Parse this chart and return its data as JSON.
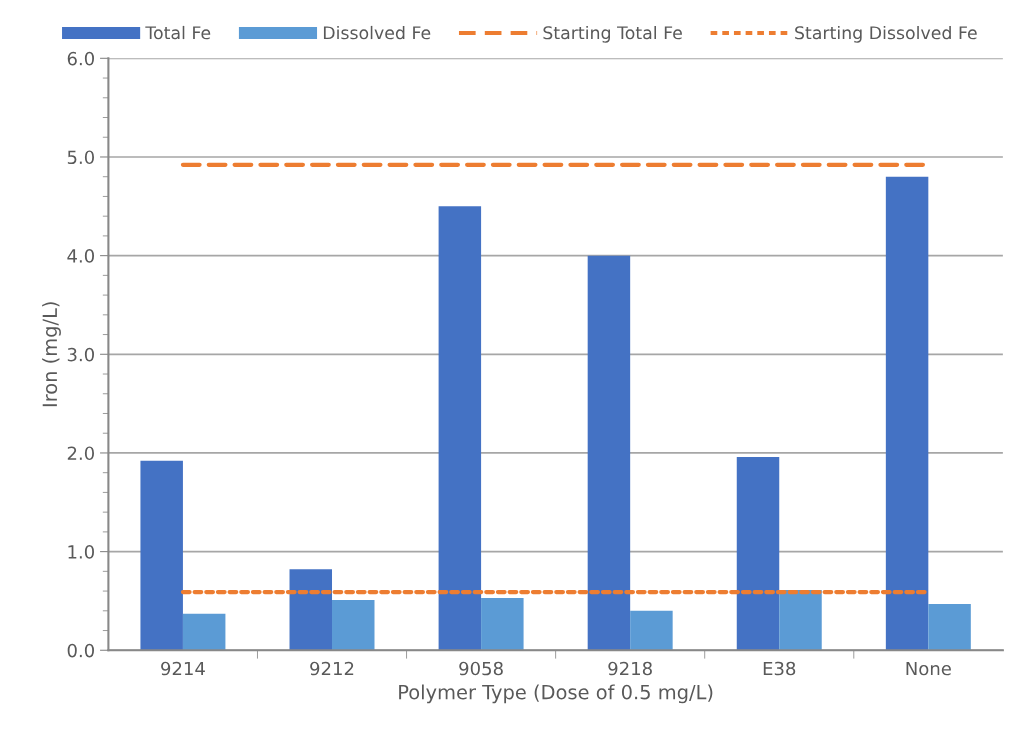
{
  "chart_data": {
    "type": "bar",
    "xlabel": "Polymer Type (Dose of 0.5 mg/L)",
    "ylabel": "Iron (mg/L)",
    "categories": [
      "9214",
      "9212",
      "9058",
      "9218",
      "E38",
      "None"
    ],
    "series": [
      {
        "name": "Total Fe",
        "color": "#4472c4",
        "values": [
          1.92,
          0.82,
          4.5,
          4.0,
          1.96,
          4.8
        ]
      },
      {
        "name": "Dissolved Fe",
        "color": "#5b9bd5",
        "values": [
          0.37,
          0.51,
          0.53,
          0.4,
          0.61,
          0.47
        ]
      },
      {
        "name": "Starting Total Fe",
        "type": "line",
        "line_style": "dashed",
        "color": "#ed7d31",
        "values": [
          4.92,
          4.92,
          4.92,
          4.92,
          4.92,
          4.92
        ]
      },
      {
        "name": "Starting Dissolved Fe",
        "type": "line",
        "line_style": "dotted",
        "color": "#ed7d31",
        "values": [
          0.59,
          0.59,
          0.59,
          0.59,
          0.59,
          0.59
        ]
      }
    ],
    "ylim": [
      0,
      6
    ],
    "yticks": [
      {
        "value": 0,
        "label": "0.0"
      },
      {
        "value": 0.2,
        "label": null
      },
      {
        "value": 0.4,
        "label": null
      },
      {
        "value": 0.6,
        "label": null
      },
      {
        "value": 0.8,
        "label": null
      },
      {
        "value": 1,
        "label": "1.0"
      },
      {
        "value": 1.2,
        "label": null
      },
      {
        "value": 1.4,
        "label": null
      },
      {
        "value": 1.6,
        "label": null
      },
      {
        "value": 1.8,
        "label": null
      },
      {
        "value": 2,
        "label": "2.0"
      },
      {
        "value": 2.2,
        "label": null
      },
      {
        "value": 2.4,
        "label": null
      },
      {
        "value": 2.6,
        "label": null
      },
      {
        "value": 2.8,
        "label": null
      },
      {
        "value": 3,
        "label": "3.0"
      },
      {
        "value": 3.2,
        "label": null
      },
      {
        "value": 3.4,
        "label": null
      },
      {
        "value": 3.6,
        "label": null
      },
      {
        "value": 3.8,
        "label": null
      },
      {
        "value": 4,
        "label": "4.0"
      },
      {
        "value": 4.2,
        "label": null
      },
      {
        "value": 4.4,
        "label": null
      },
      {
        "value": 4.6,
        "label": null
      },
      {
        "value": 4.8,
        "label": null
      },
      {
        "value": 5,
        "label": "5.0"
      },
      {
        "value": 5.2,
        "label": null
      },
      {
        "value": 5.4,
        "label": null
      },
      {
        "value": 5.6,
        "label": null
      },
      {
        "value": 5.8,
        "label": null
      },
      {
        "value": 6,
        "label": "6.0"
      }
    ],
    "grid": "y",
    "legend": "top"
  }
}
